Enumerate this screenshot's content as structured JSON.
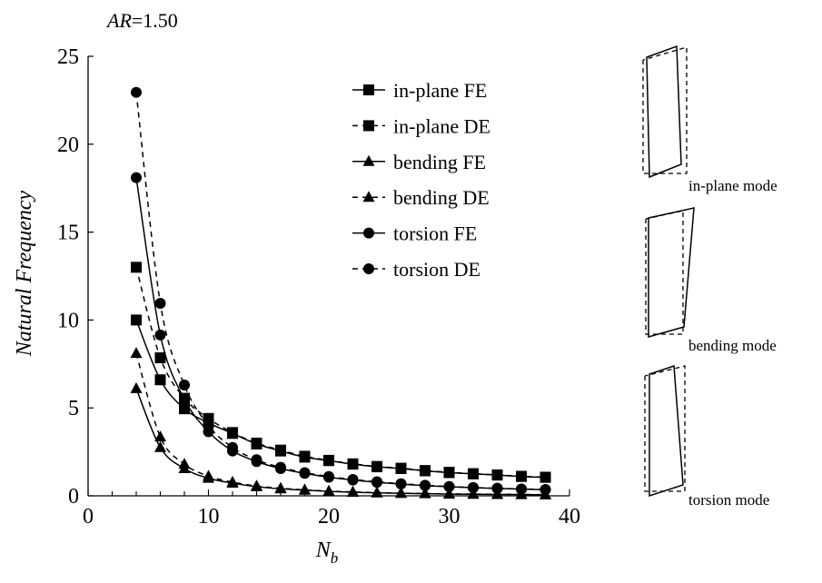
{
  "chart_data": {
    "type": "line",
    "title": "AR=1.50",
    "title_var": "AR",
    "title_rest": "=1.50",
    "xlabel": "N",
    "xlabel_sub": "b",
    "ylabel": "Natural Frequency",
    "xlim": [
      0,
      40
    ],
    "ylim": [
      0,
      25
    ],
    "xticks": [
      0,
      10,
      20,
      30,
      40
    ],
    "yticks": [
      0,
      5,
      10,
      15,
      20,
      25
    ],
    "x_minor_step": 2,
    "grid": false,
    "legend_position": "top-right",
    "x": [
      4,
      6,
      8,
      10,
      12,
      14,
      16,
      18,
      20,
      22,
      24,
      26,
      28,
      30,
      32,
      34,
      36,
      38
    ],
    "series": [
      {
        "name": "in-plane FE",
        "marker": "square",
        "dash": "solid",
        "values": [
          10.0,
          6.6,
          4.95,
          4.15,
          3.55,
          2.95,
          2.55,
          2.2,
          2.0,
          1.8,
          1.65,
          1.55,
          1.42,
          1.32,
          1.25,
          1.18,
          1.1,
          1.05
        ]
      },
      {
        "name": "in-plane DE",
        "marker": "square",
        "dash": "dashed",
        "values": [
          13.0,
          7.85,
          5.55,
          4.4,
          3.6,
          3.0,
          2.6,
          2.25,
          2.02,
          1.82,
          1.67,
          1.57,
          1.44,
          1.34,
          1.26,
          1.19,
          1.11,
          1.06
        ]
      },
      {
        "name": "bending FE",
        "marker": "triangle",
        "dash": "solid",
        "values": [
          6.1,
          2.75,
          1.55,
          1.0,
          0.72,
          0.52,
          0.4,
          0.32,
          0.25,
          0.2,
          0.17,
          0.14,
          0.12,
          0.1,
          0.09,
          0.08,
          0.07,
          0.06
        ]
      },
      {
        "name": "bending DE",
        "marker": "triangle",
        "dash": "dashed",
        "values": [
          8.1,
          3.35,
          1.8,
          1.12,
          0.78,
          0.56,
          0.43,
          0.34,
          0.27,
          0.22,
          0.18,
          0.15,
          0.13,
          0.11,
          0.1,
          0.09,
          0.08,
          0.07
        ]
      },
      {
        "name": "torsion FE",
        "marker": "circle",
        "dash": "solid",
        "values": [
          18.1,
          9.15,
          5.5,
          3.65,
          2.55,
          1.95,
          1.55,
          1.28,
          1.06,
          0.9,
          0.77,
          0.67,
          0.58,
          0.52,
          0.46,
          0.42,
          0.38,
          0.35
        ]
      },
      {
        "name": "torsion DE",
        "marker": "circle",
        "dash": "dashed",
        "values": [
          22.95,
          10.95,
          6.3,
          4.0,
          2.75,
          2.05,
          1.62,
          1.32,
          1.1,
          0.93,
          0.8,
          0.69,
          0.6,
          0.53,
          0.47,
          0.43,
          0.39,
          0.36
        ]
      }
    ]
  },
  "mode_labels": [
    "in-plane mode",
    "bending mode",
    "torsion mode"
  ]
}
